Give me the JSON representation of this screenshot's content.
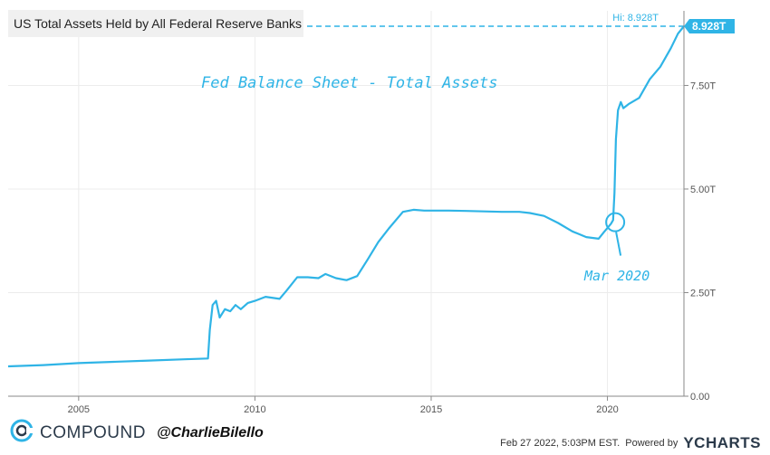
{
  "title": "US Total Assets Held by All Federal Reserve Banks",
  "annotation_main": "Fed Balance Sheet - Total Assets",
  "annotation_mar": "Mar 2020",
  "hi_label": "Hi: 8.928T",
  "last_value_label": "8.928T",
  "footer": {
    "brand": "COMPOUND",
    "handle": "@CharlieBilello",
    "date": "Feb 27 2022, 5:03PM EST.",
    "powered_by": "Powered by",
    "ycharts": "YCHARTS"
  },
  "colors": {
    "line": "#2fb4e6",
    "axis": "#8a8a8a"
  },
  "chart_data": {
    "type": "line",
    "title": "US Total Assets Held by All Federal Reserve Banks",
    "xlim": [
      2003.0,
      2022.17
    ],
    "ylim": [
      0,
      9.3
    ],
    "x_ticks": [
      2005,
      2010,
      2015,
      2020
    ],
    "x_tick_labels": [
      "2005",
      "2010",
      "2015",
      "2020"
    ],
    "y_ticks": [
      0,
      2.5,
      5.0,
      7.5
    ],
    "y_tick_labels": [
      "0.00",
      "2.50T",
      "5.00T",
      "7.50T"
    ],
    "high": 8.928,
    "series": [
      {
        "x": [
          2003.0,
          2004.0,
          2005.0,
          2006.0,
          2007.0,
          2008.0,
          2008.67,
          2008.72,
          2008.8,
          2008.9,
          2009.0,
          2009.15,
          2009.3,
          2009.45,
          2009.6,
          2009.8,
          2010.0,
          2010.3,
          2010.7,
          2010.9,
          2011.2,
          2011.5,
          2011.8,
          2012.0,
          2012.3,
          2012.6,
          2012.9,
          2013.2,
          2013.5,
          2013.8,
          2014.2,
          2014.5,
          2014.8,
          2015.0,
          2015.5,
          2016.0,
          2016.5,
          2017.0,
          2017.5,
          2017.8,
          2018.2,
          2018.6,
          2019.0,
          2019.4,
          2019.75,
          2019.9,
          2020.1,
          2020.16,
          2020.2,
          2020.24,
          2020.3,
          2020.38,
          2020.45,
          2020.6,
          2020.9,
          2021.2,
          2021.5,
          2021.8,
          2022.0,
          2022.17
        ],
        "values": [
          0.72,
          0.75,
          0.8,
          0.83,
          0.86,
          0.89,
          0.91,
          1.6,
          2.2,
          2.3,
          1.9,
          2.1,
          2.05,
          2.2,
          2.1,
          2.25,
          2.3,
          2.4,
          2.35,
          2.55,
          2.87,
          2.87,
          2.85,
          2.95,
          2.85,
          2.8,
          2.9,
          3.3,
          3.72,
          4.05,
          4.45,
          4.5,
          4.48,
          4.48,
          4.48,
          4.47,
          4.46,
          4.45,
          4.45,
          4.42,
          4.35,
          4.18,
          3.98,
          3.84,
          3.8,
          3.96,
          4.16,
          4.25,
          4.9,
          6.2,
          6.9,
          7.1,
          6.95,
          7.05,
          7.2,
          7.65,
          7.95,
          8.4,
          8.75,
          8.928
        ]
      }
    ]
  }
}
